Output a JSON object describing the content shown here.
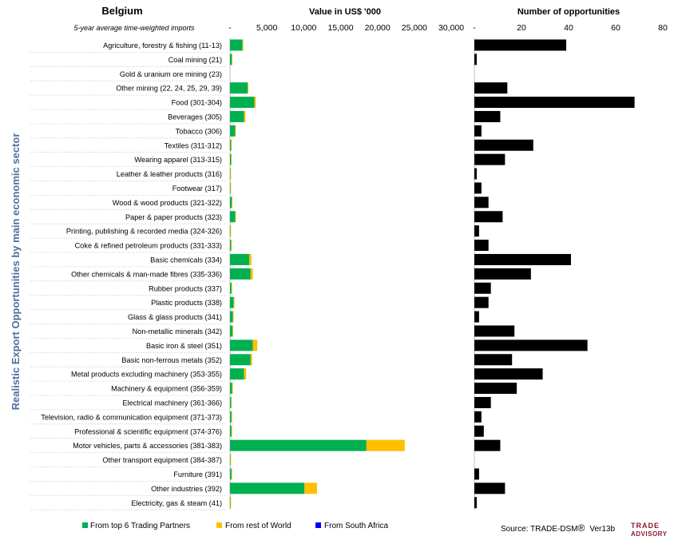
{
  "chart_data": [
    {
      "type": "bar",
      "orientation": "horizontal",
      "stacked": true,
      "title": "Value in US$ '000",
      "country_label": "Belgium",
      "subtitle": "5-year average time-weighted imports",
      "ylabel": "Realistic Export Opportunities by main economic sector",
      "xlim": [
        0,
        30000
      ],
      "xticks": [
        "-",
        "5,000",
        "10,000",
        "15,000",
        "20,000",
        "25,000",
        "30,000"
      ],
      "grid": false,
      "legend_position": "bottom",
      "categories": [
        "Agriculture, forestry & fishing (11-13)",
        "Coal mining (21)",
        "Gold & uranium ore mining (23)",
        "Other mining (22, 24, 25, 29, 39)",
        "Food (301-304)",
        "Beverages (305)",
        "Tobacco (306)",
        "Textiles (311-312)",
        "Wearing apparel (313-315)",
        "Leather & leather products (316)",
        "Footwear (317)",
        "Wood & wood products (321-322)",
        "Paper & paper products (323)",
        "Printing, publishing & recorded media (324-326)",
        "Coke & refined petroleum products (331-333)",
        "Basic chemicals (334)",
        "Other chemicals & man-made fibres (335-336)",
        "Rubber products (337)",
        "Plastic products (338)",
        "Glass & glass products (341)",
        "Non-metallic minerals (342)",
        "Basic iron & steel (351)",
        "Basic non-ferrous metals (352)",
        "Metal products excluding machinery (353-355)",
        "Machinery & equipment (356-359)",
        "Electrical machinery (361-366)",
        "Television, radio & communication equipment (371-373)",
        "Professional & scientific equipment (374-376)",
        "Motor vehicles, parts & accessories (381-383)",
        "Other transport equipment (384-387)",
        "Furniture (391)",
        "Other industries (392)",
        "Electricity, gas & steam (41)"
      ],
      "series": [
        {
          "name": "From top 6 Trading Partners",
          "color": "#00b050",
          "values": [
            1700,
            250,
            0,
            2400,
            3300,
            1900,
            700,
            150,
            150,
            50,
            50,
            250,
            700,
            50,
            150,
            2600,
            2800,
            200,
            500,
            400,
            350,
            3100,
            2800,
            1900,
            300,
            150,
            200,
            200,
            18500,
            50,
            200,
            10100,
            50
          ]
        },
        {
          "name": "From rest of World",
          "color": "#ffc000",
          "values": [
            100,
            50,
            0,
            100,
            200,
            200,
            50,
            50,
            50,
            20,
            20,
            50,
            100,
            20,
            50,
            300,
            300,
            50,
            100,
            50,
            50,
            600,
            200,
            300,
            50,
            50,
            50,
            50,
            5200,
            20,
            50,
            1700,
            20
          ]
        },
        {
          "name": "From South Africa",
          "color": "#0000ff",
          "values": [
            0,
            0,
            0,
            0,
            0,
            0,
            0,
            0,
            0,
            0,
            0,
            0,
            0,
            0,
            0,
            0,
            0,
            0,
            0,
            0,
            0,
            0,
            0,
            0,
            0,
            0,
            0,
            0,
            0,
            0,
            0,
            0,
            0
          ]
        }
      ]
    },
    {
      "type": "bar",
      "orientation": "horizontal",
      "title": "Number of opportunities",
      "xlim": [
        0,
        80
      ],
      "xticks": [
        "-",
        "20",
        "40",
        "60",
        "80"
      ],
      "grid": false,
      "color": "#000000",
      "values": [
        39,
        1,
        0,
        14,
        68,
        11,
        3,
        25,
        13,
        1,
        3,
        6,
        12,
        2,
        6,
        41,
        24,
        7,
        6,
        2,
        17,
        48,
        16,
        29,
        18,
        7,
        3,
        4,
        11,
        0,
        2,
        13,
        1
      ]
    }
  ],
  "footer": {
    "source": "Source: TRADE-DSM",
    "registered": "®",
    "version": "Ver13b",
    "logo_line1": "TRADE",
    "logo_line2": "ADVISORY"
  }
}
